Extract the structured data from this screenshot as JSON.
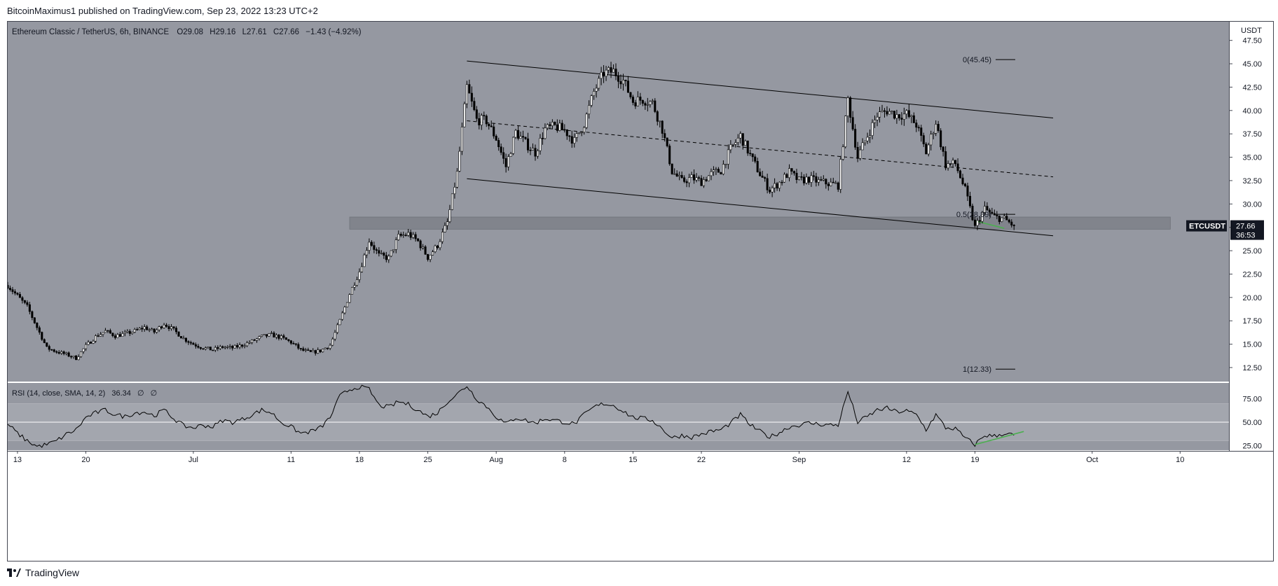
{
  "header": {
    "published_by": "BitcoinMaximus1 published on TradingView.com, Sep 23, 2022 13:23 UTC+2"
  },
  "legend": {
    "symbol": "Ethereum Classic / TetherUS, 6h, BINANCE",
    "open_label": "O",
    "open": "29.08",
    "high_label": "H",
    "high": "29.16",
    "low_label": "L",
    "low": "27.61",
    "close_label": "C",
    "close": "27.66",
    "change": "−1.43 (−4.92%)"
  },
  "price_axis": {
    "currency": "USDT"
  },
  "last_price": {
    "symbol": "ETCUSDT",
    "price": "27.66",
    "countdown": "36:53"
  },
  "fib_labels": {
    "level0": "0(45.45)",
    "level05": "0.5(28.89)",
    "level1": "1(12.33)"
  },
  "rsi": {
    "label": "RSI (14, close, SMA, 14, 2)",
    "value": "36.34",
    "extra1": "∅",
    "extra2": "∅"
  },
  "footer": {
    "brand": "TradingView"
  },
  "colors": {
    "panel": "#9598a1",
    "rsi_band": "#a3a6ae",
    "candle_up": "#ffffff",
    "candle_down": "#000000",
    "green_div": "#4caf50",
    "text": "#131722",
    "support_zone": "#7b7e86"
  },
  "chart_data": {
    "type": "candlestick",
    "symbol": "ETCUSDT",
    "interval": "6h",
    "ylim": [
      11,
      49.5
    ],
    "yticks": [
      12.5,
      15,
      17.5,
      20,
      22.5,
      25,
      27.5,
      30,
      32.5,
      35,
      37.5,
      40,
      42.5,
      45,
      47.5
    ],
    "ytick_labels": [
      "12.50",
      "15.00",
      "17.50",
      "20.00",
      "22.50",
      "25.00",
      "27.50",
      "30.00",
      "32.50",
      "35.00",
      "37.50",
      "40.00",
      "42.50",
      "45.00",
      "47.50"
    ],
    "xlim": [
      "2022-06-12",
      "2022-10-15"
    ],
    "xticks": [
      {
        "label": "13",
        "date": "2022-06-13"
      },
      {
        "label": "20",
        "date": "2022-06-20"
      },
      {
        "label": "Jul",
        "date": "2022-07-01"
      },
      {
        "label": "11",
        "date": "2022-07-11"
      },
      {
        "label": "18",
        "date": "2022-07-18"
      },
      {
        "label": "25",
        "date": "2022-07-25"
      },
      {
        "label": "Aug",
        "date": "2022-08-01"
      },
      {
        "label": "8",
        "date": "2022-08-08"
      },
      {
        "label": "15",
        "date": "2022-08-15"
      },
      {
        "label": "22",
        "date": "2022-08-22"
      },
      {
        "label": "Sep",
        "date": "2022-09-01"
      },
      {
        "label": "12",
        "date": "2022-09-12"
      },
      {
        "label": "19",
        "date": "2022-09-19"
      },
      {
        "label": "Oct",
        "date": "2022-10-01"
      },
      {
        "label": "10",
        "date": "2022-10-10"
      }
    ],
    "closes": [
      [
        "2022-06-12",
        21.3
      ],
      [
        "2022-06-14",
        19.0
      ],
      [
        "2022-06-15",
        16.8
      ],
      [
        "2022-06-16",
        14.6
      ],
      [
        "2022-06-17",
        14.2
      ],
      [
        "2022-06-18",
        13.9
      ],
      [
        "2022-06-19",
        13.5
      ],
      [
        "2022-06-20",
        14.8
      ],
      [
        "2022-06-21",
        15.8
      ],
      [
        "2022-06-22",
        16.4
      ],
      [
        "2022-06-23",
        15.9
      ],
      [
        "2022-06-24",
        16.1
      ],
      [
        "2022-06-25",
        16.4
      ],
      [
        "2022-06-26",
        16.8
      ],
      [
        "2022-06-27",
        16.3
      ],
      [
        "2022-06-28",
        17.2
      ],
      [
        "2022-06-29",
        16.5
      ],
      [
        "2022-06-30",
        15.6
      ],
      [
        "2022-07-01",
        15.0
      ],
      [
        "2022-07-02",
        14.6
      ],
      [
        "2022-07-03",
        14.4
      ],
      [
        "2022-07-04",
        14.7
      ],
      [
        "2022-07-05",
        14.6
      ],
      [
        "2022-07-06",
        14.9
      ],
      [
        "2022-07-07",
        15.3
      ],
      [
        "2022-07-08",
        15.8
      ],
      [
        "2022-07-09",
        16.0
      ],
      [
        "2022-07-10",
        15.7
      ],
      [
        "2022-07-11",
        15.2
      ],
      [
        "2022-07-12",
        14.4
      ],
      [
        "2022-07-13",
        14.1
      ],
      [
        "2022-07-14",
        14.3
      ],
      [
        "2022-07-15",
        14.9
      ],
      [
        "2022-07-16",
        17.5
      ],
      [
        "2022-07-17",
        20.4
      ],
      [
        "2022-07-18",
        22.8
      ],
      [
        "2022-07-19",
        26.1
      ],
      [
        "2022-07-20",
        24.5
      ],
      [
        "2022-07-21",
        24.2
      ],
      [
        "2022-07-22",
        26.5
      ],
      [
        "2022-07-23",
        26.8
      ],
      [
        "2022-07-24",
        26.0
      ],
      [
        "2022-07-25",
        24.3
      ],
      [
        "2022-07-26",
        25.6
      ],
      [
        "2022-07-27",
        28.0
      ],
      [
        "2022-07-28",
        33.3
      ],
      [
        "2022-07-29",
        42.5
      ],
      [
        "2022-07-30",
        39.0
      ],
      [
        "2022-07-31",
        38.9
      ],
      [
        "2022-08-01",
        37.0
      ],
      [
        "2022-08-02",
        34.0
      ],
      [
        "2022-08-03",
        37.7
      ],
      [
        "2022-08-04",
        36.5
      ],
      [
        "2022-08-05",
        35.5
      ],
      [
        "2022-08-06",
        38.0
      ],
      [
        "2022-08-07",
        38.3
      ],
      [
        "2022-08-08",
        37.9
      ],
      [
        "2022-08-09",
        36.7
      ],
      [
        "2022-08-10",
        38.6
      ],
      [
        "2022-08-11",
        42.0
      ],
      [
        "2022-08-12",
        44.0
      ],
      [
        "2022-08-13",
        44.2
      ],
      [
        "2022-08-14",
        43.2
      ],
      [
        "2022-08-15",
        41.0
      ],
      [
        "2022-08-16",
        41.2
      ],
      [
        "2022-08-17",
        40.8
      ],
      [
        "2022-08-18",
        38.0
      ],
      [
        "2022-08-19",
        33.5
      ],
      [
        "2022-08-20",
        32.4
      ],
      [
        "2022-08-21",
        32.8
      ],
      [
        "2022-08-22",
        32.4
      ],
      [
        "2022-08-23",
        33.2
      ],
      [
        "2022-08-24",
        33.6
      ],
      [
        "2022-08-25",
        35.9
      ],
      [
        "2022-08-26",
        37.3
      ],
      [
        "2022-08-27",
        35.2
      ],
      [
        "2022-08-28",
        33.2
      ],
      [
        "2022-08-29",
        31.5
      ],
      [
        "2022-08-30",
        32.3
      ],
      [
        "2022-08-31",
        33.4
      ],
      [
        "2022-09-01",
        32.5
      ],
      [
        "2022-09-02",
        32.7
      ],
      [
        "2022-09-03",
        32.4
      ],
      [
        "2022-09-04",
        32.2
      ],
      [
        "2022-09-05",
        32.0
      ],
      [
        "2022-09-06",
        41.2
      ],
      [
        "2022-09-07",
        35.0
      ],
      [
        "2022-09-08",
        37.3
      ],
      [
        "2022-09-09",
        39.5
      ],
      [
        "2022-09-10",
        40.0
      ],
      [
        "2022-09-11",
        39.5
      ],
      [
        "2022-09-12",
        39.6
      ],
      [
        "2022-09-13",
        38.5
      ],
      [
        "2022-09-14",
        35.5
      ],
      [
        "2022-09-15",
        38.8
      ],
      [
        "2022-09-16",
        34.2
      ],
      [
        "2022-09-17",
        34.3
      ],
      [
        "2022-09-18",
        31.5
      ],
      [
        "2022-09-19",
        27.5
      ],
      [
        "2022-09-20",
        29.5
      ],
      [
        "2022-09-21",
        28.6
      ],
      [
        "2022-09-22",
        28.4
      ],
      [
        "2022-09-23",
        27.66
      ]
    ],
    "channel": {
      "upper": [
        [
          "2022-07-29",
          45.3
        ],
        [
          "2022-09-27",
          39.2
        ]
      ],
      "middle": [
        [
          "2022-07-29",
          38.9
        ],
        [
          "2022-09-27",
          32.9
        ]
      ],
      "lower": [
        [
          "2022-07-29",
          32.7
        ],
        [
          "2022-09-27",
          26.6
        ]
      ]
    },
    "support_zone": {
      "low": 27.3,
      "high": 28.6,
      "from": "2022-07-17",
      "to": "2022-10-09"
    },
    "fib_levels": [
      {
        "label": "0",
        "price": 45.45
      },
      {
        "label": "0.5",
        "price": 28.89
      },
      {
        "label": "1",
        "price": 12.33
      }
    ],
    "price_divergence_line": [
      [
        "2022-09-19",
        28.2
      ],
      [
        "2022-09-22",
        27.4
      ]
    ],
    "rsi_series": {
      "ylim": [
        20,
        92
      ],
      "yticks": [
        25,
        50,
        75
      ],
      "bands": [
        30,
        50,
        70
      ],
      "values": [
        [
          "2022-06-12",
          48
        ],
        [
          "2022-06-13",
          38
        ],
        [
          "2022-06-14",
          30
        ],
        [
          "2022-06-15",
          24
        ],
        [
          "2022-06-16",
          26
        ],
        [
          "2022-06-17",
          30
        ],
        [
          "2022-06-18",
          37
        ],
        [
          "2022-06-19",
          42
        ],
        [
          "2022-06-20",
          55
        ],
        [
          "2022-06-21",
          60
        ],
        [
          "2022-06-22",
          63
        ],
        [
          "2022-06-23",
          58
        ],
        [
          "2022-06-24",
          56
        ],
        [
          "2022-06-25",
          60
        ],
        [
          "2022-06-26",
          61
        ],
        [
          "2022-06-27",
          57
        ],
        [
          "2022-06-28",
          63
        ],
        [
          "2022-06-29",
          54
        ],
        [
          "2022-06-30",
          46
        ],
        [
          "2022-07-01",
          44
        ],
        [
          "2022-07-02",
          47
        ],
        [
          "2022-07-03",
          45
        ],
        [
          "2022-07-04",
          52
        ],
        [
          "2022-07-05",
          50
        ],
        [
          "2022-07-06",
          53
        ],
        [
          "2022-07-07",
          58
        ],
        [
          "2022-07-08",
          63
        ],
        [
          "2022-07-09",
          60
        ],
        [
          "2022-07-10",
          50
        ],
        [
          "2022-07-11",
          45
        ],
        [
          "2022-07-12",
          38
        ],
        [
          "2022-07-13",
          40
        ],
        [
          "2022-07-14",
          44
        ],
        [
          "2022-07-15",
          55
        ],
        [
          "2022-07-16",
          78
        ],
        [
          "2022-07-17",
          85
        ],
        [
          "2022-07-18",
          88
        ],
        [
          "2022-07-19",
          85
        ],
        [
          "2022-07-20",
          68
        ],
        [
          "2022-07-21",
          66
        ],
        [
          "2022-07-22",
          72
        ],
        [
          "2022-07-23",
          69
        ],
        [
          "2022-07-24",
          63
        ],
        [
          "2022-07-25",
          56
        ],
        [
          "2022-07-26",
          60
        ],
        [
          "2022-07-27",
          72
        ],
        [
          "2022-07-28",
          80
        ],
        [
          "2022-07-29",
          89
        ],
        [
          "2022-07-30",
          75
        ],
        [
          "2022-07-31",
          67
        ],
        [
          "2022-08-01",
          56
        ],
        [
          "2022-08-02",
          48
        ],
        [
          "2022-08-03",
          55
        ],
        [
          "2022-08-04",
          52
        ],
        [
          "2022-08-05",
          49
        ],
        [
          "2022-08-06",
          54
        ],
        [
          "2022-08-07",
          52
        ],
        [
          "2022-08-08",
          50
        ],
        [
          "2022-08-09",
          48
        ],
        [
          "2022-08-10",
          58
        ],
        [
          "2022-08-11",
          66
        ],
        [
          "2022-08-12",
          70
        ],
        [
          "2022-08-13",
          68
        ],
        [
          "2022-08-14",
          62
        ],
        [
          "2022-08-15",
          55
        ],
        [
          "2022-08-16",
          54
        ],
        [
          "2022-08-17",
          52
        ],
        [
          "2022-08-18",
          43
        ],
        [
          "2022-08-19",
          33
        ],
        [
          "2022-08-20",
          36
        ],
        [
          "2022-08-21",
          34
        ],
        [
          "2022-08-22",
          37
        ],
        [
          "2022-08-23",
          40
        ],
        [
          "2022-08-24",
          42
        ],
        [
          "2022-08-25",
          49
        ],
        [
          "2022-08-26",
          58
        ],
        [
          "2022-08-27",
          47
        ],
        [
          "2022-08-28",
          40
        ],
        [
          "2022-08-29",
          34
        ],
        [
          "2022-08-30",
          39
        ],
        [
          "2022-08-31",
          45
        ],
        [
          "2022-09-01",
          47
        ],
        [
          "2022-09-02",
          49
        ],
        [
          "2022-09-03",
          48
        ],
        [
          "2022-09-04",
          47
        ],
        [
          "2022-09-05",
          47
        ],
        [
          "2022-09-06",
          83
        ],
        [
          "2022-09-07",
          50
        ],
        [
          "2022-09-08",
          56
        ],
        [
          "2022-09-09",
          63
        ],
        [
          "2022-09-10",
          65
        ],
        [
          "2022-09-11",
          61
        ],
        [
          "2022-09-12",
          62
        ],
        [
          "2022-09-13",
          58
        ],
        [
          "2022-09-14",
          42
        ],
        [
          "2022-09-15",
          58
        ],
        [
          "2022-09-16",
          44
        ],
        [
          "2022-09-17",
          43
        ],
        [
          "2022-09-18",
          33
        ],
        [
          "2022-09-19",
          26
        ],
        [
          "2022-09-20",
          36
        ],
        [
          "2022-09-21",
          35
        ],
        [
          "2022-09-22",
          38
        ],
        [
          "2022-09-23",
          36
        ]
      ],
      "divergence_line": [
        [
          "2022-09-19",
          26
        ],
        [
          "2022-09-24",
          40
        ]
      ]
    }
  }
}
